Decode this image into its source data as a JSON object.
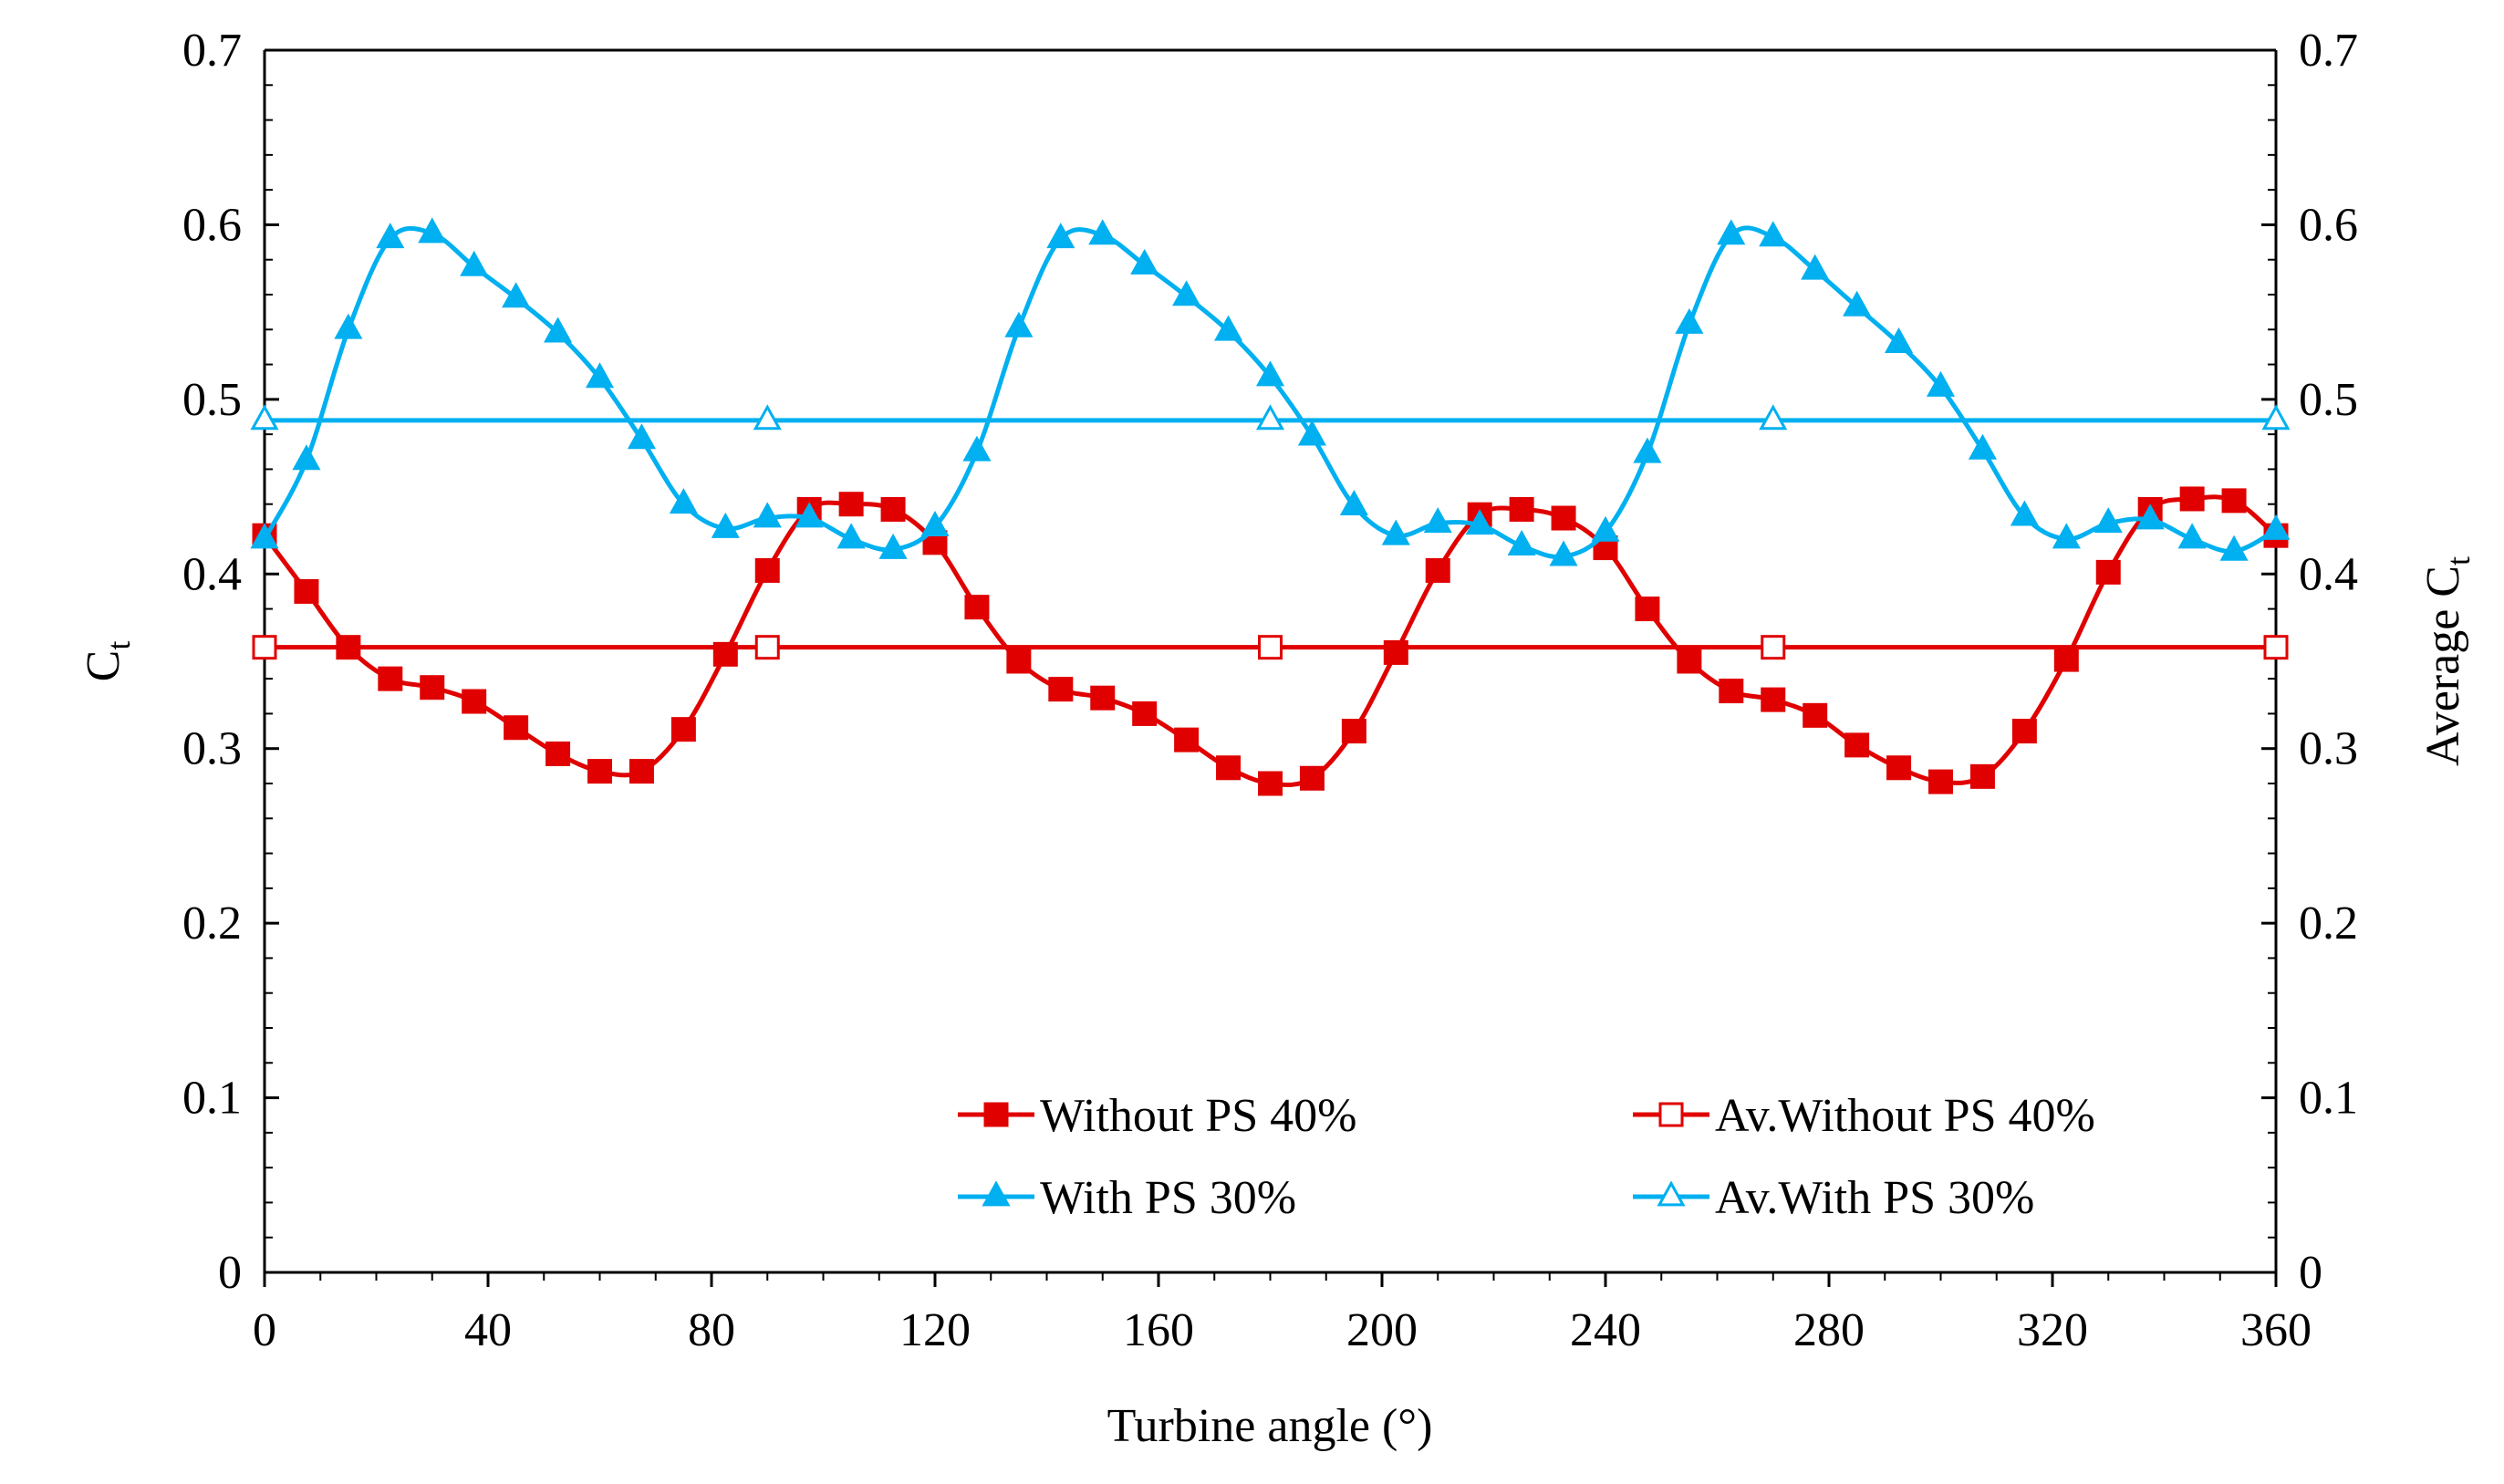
{
  "chart_data": {
    "type": "line",
    "title": "",
    "xlabel": "Turbine angle (°)",
    "ylabel_left": {
      "main": "C",
      "sub": "t"
    },
    "ylabel_right": {
      "main": "Average C",
      "sub": "t"
    },
    "xlim": [
      0,
      360
    ],
    "ylim": [
      0,
      0.7
    ],
    "y2lim": [
      0,
      0.7
    ],
    "x_ticks": [
      "0",
      "40",
      "80",
      "120",
      "160",
      "200",
      "240",
      "280",
      "320",
      "360"
    ],
    "y_ticks": [
      "0",
      "0.1",
      "0.2",
      "0.3",
      "0.4",
      "0.5",
      "0.6",
      "0.7"
    ],
    "y2_ticks": [
      "0",
      "0.1",
      "0.2",
      "0.3",
      "0.4",
      "0.5",
      "0.6",
      "0.7"
    ],
    "grid": false,
    "legend_position": "bottom-right",
    "series": [
      {
        "name": "Without PS 40%",
        "color": "#e00000",
        "marker": "square-filled",
        "x": [
          0,
          7.5,
          15,
          22.5,
          30,
          37.5,
          45,
          52.5,
          60,
          67.5,
          75,
          82.5,
          90,
          97.5,
          105,
          112.5,
          120,
          127.5,
          135,
          142.5,
          150,
          157.5,
          165,
          172.5,
          180,
          187.5,
          195,
          202.5,
          210,
          217.5,
          225,
          232.5,
          240,
          247.5,
          255,
          262.5,
          270,
          277.5,
          285,
          292.5,
          300,
          307.5,
          315,
          322.5,
          330,
          337.5,
          345,
          352.5,
          360
        ],
        "values": [
          0.422,
          0.39,
          0.358,
          0.34,
          0.335,
          0.327,
          0.312,
          0.297,
          0.287,
          0.287,
          0.311,
          0.354,
          0.402,
          0.437,
          0.44,
          0.437,
          0.418,
          0.381,
          0.35,
          0.334,
          0.329,
          0.32,
          0.305,
          0.289,
          0.28,
          0.283,
          0.31,
          0.355,
          0.402,
          0.434,
          0.437,
          0.432,
          0.415,
          0.38,
          0.35,
          0.333,
          0.328,
          0.319,
          0.302,
          0.289,
          0.281,
          0.284,
          0.31,
          0.351,
          0.401,
          0.437,
          0.443,
          0.442,
          0.422
        ]
      },
      {
        "name": "With PS 30%",
        "color": "#00b0f0",
        "marker": "triangle-filled",
        "x": [
          0,
          7.5,
          15,
          22.5,
          30,
          37.5,
          45,
          52.5,
          60,
          67.5,
          75,
          82.5,
          90,
          97.5,
          105,
          112.5,
          120,
          127.5,
          135,
          142.5,
          150,
          157.5,
          165,
          172.5,
          180,
          187.5,
          195,
          202.5,
          210,
          217.5,
          225,
          232.5,
          240,
          247.5,
          255,
          262.5,
          270,
          277.5,
          285,
          292.5,
          300,
          307.5,
          315,
          322.5,
          330,
          337.5,
          345,
          352.5,
          360
        ],
        "values": [
          0.42,
          0.465,
          0.54,
          0.592,
          0.595,
          0.576,
          0.558,
          0.538,
          0.512,
          0.477,
          0.44,
          0.426,
          0.432,
          0.432,
          0.42,
          0.414,
          0.427,
          0.47,
          0.541,
          0.592,
          0.594,
          0.577,
          0.559,
          0.539,
          0.513,
          0.479,
          0.439,
          0.422,
          0.429,
          0.428,
          0.416,
          0.41,
          0.424,
          0.469,
          0.543,
          0.594,
          0.593,
          0.574,
          0.553,
          0.532,
          0.507,
          0.471,
          0.433,
          0.42,
          0.429,
          0.431,
          0.42,
          0.413,
          0.425
        ]
      },
      {
        "name": "Av.Without PS 40%",
        "color": "#e00000",
        "marker": "square-open",
        "axis": "right",
        "x": [
          0,
          90,
          180,
          270,
          360
        ],
        "values": [
          0.358,
          0.358,
          0.358,
          0.358,
          0.358
        ]
      },
      {
        "name": "Av.With PS 30%",
        "color": "#00b0f0",
        "marker": "triangle-open",
        "axis": "right",
        "x": [
          0,
          90,
          180,
          270,
          360
        ],
        "values": [
          0.488,
          0.488,
          0.488,
          0.488,
          0.488
        ]
      }
    ],
    "legend_order": [
      0,
      2,
      1,
      3
    ]
  }
}
